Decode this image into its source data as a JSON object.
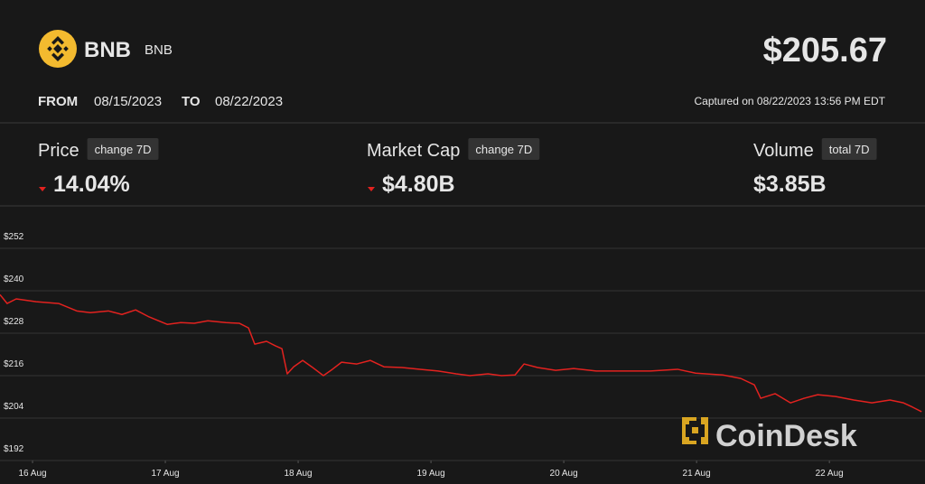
{
  "header": {
    "logo_text": "BNB",
    "symbol": "BNB",
    "price": "$205.67",
    "from_label": "FROM",
    "from_date": "08/15/2023",
    "to_label": "TO",
    "to_date": "08/22/2023",
    "captured": "Captured on 08/22/2023 13:56 PM EDT"
  },
  "stats": [
    {
      "label": "Price",
      "badge": "change 7D",
      "value": "14.04%",
      "direction": "down"
    },
    {
      "label": "Market Cap",
      "badge": "change 7D",
      "value": "$4.80B",
      "direction": "down"
    },
    {
      "label": "Volume",
      "badge": "total 7D",
      "value": "$3.85B"
    }
  ],
  "watermark": "CoinDesk",
  "chart_data": {
    "type": "line",
    "x": [
      15.755,
      15.809,
      15.877,
      16.027,
      16.197,
      16.333,
      16.435,
      16.571,
      16.673,
      16.776,
      16.878,
      17.014,
      17.116,
      17.218,
      17.32,
      17.456,
      17.558,
      17.626,
      17.673,
      17.762,
      17.83,
      17.878,
      17.918,
      17.966,
      18.034,
      18.102,
      18.19,
      18.258,
      18.327,
      18.442,
      18.544,
      18.646,
      18.782,
      18.918,
      19.054,
      19.19,
      19.293,
      19.429,
      19.531,
      19.633,
      19.701,
      19.803,
      19.939,
      20.075,
      20.245,
      20.449,
      20.653,
      20.857,
      20.993,
      21.197,
      21.333,
      21.435,
      21.483,
      21.592,
      21.707,
      21.81,
      21.912,
      22.048,
      22.184,
      22.32,
      22.456,
      22.558,
      22.626,
      22.694
    ],
    "series": [
      {
        "color": "#e3221f",
        "values": [
          238.9,
          236.4,
          237.7,
          236.9,
          236.4,
          234.3,
          233.8,
          234.3,
          233.3,
          234.6,
          232.6,
          230.5,
          231.0,
          230.8,
          231.5,
          231.0,
          230.8,
          229.5,
          224.9,
          225.7,
          224.4,
          223.6,
          216.5,
          218.5,
          220.3,
          218.5,
          216.0,
          217.8,
          219.8,
          219.3,
          220.3,
          218.5,
          218.3,
          217.8,
          217.3,
          216.5,
          216.0,
          216.5,
          216.0,
          216.2,
          219.3,
          218.3,
          217.5,
          218.0,
          217.3,
          217.3,
          217.3,
          217.8,
          216.7,
          216.2,
          215.2,
          213.4,
          209.6,
          210.9,
          208.3,
          209.6,
          210.6,
          210.1,
          209.1,
          208.3,
          209.1,
          208.3,
          207.1,
          205.8
        ]
      }
    ],
    "xlim": [
      15.755,
      22.72
    ],
    "xticks": [
      {
        "value": 16,
        "label": "16 Aug"
      },
      {
        "value": 17,
        "label": "17 Aug"
      },
      {
        "value": 18,
        "label": "18 Aug"
      },
      {
        "value": 19,
        "label": "19 Aug"
      },
      {
        "value": 20,
        "label": "20 Aug"
      },
      {
        "value": 21,
        "label": "21 Aug"
      },
      {
        "value": 22,
        "label": "22 Aug"
      }
    ],
    "ylim": [
      192,
      264
    ],
    "yticks": [
      {
        "value": 192,
        "label": "$192"
      },
      {
        "value": 204,
        "label": "$204"
      },
      {
        "value": 216,
        "label": "$216"
      },
      {
        "value": 228,
        "label": "$228"
      },
      {
        "value": 240,
        "label": "$240"
      },
      {
        "value": 252,
        "label": "$252"
      }
    ],
    "grid": true
  }
}
